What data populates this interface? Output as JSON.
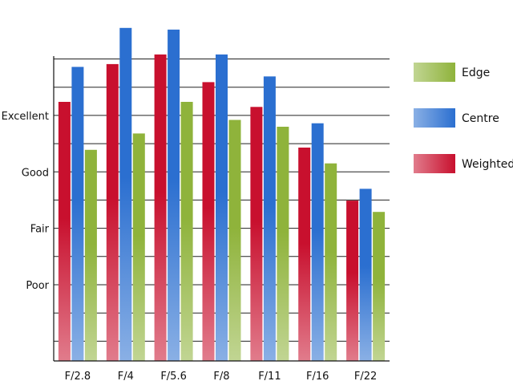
{
  "chart_data": {
    "type": "bar",
    "title": "",
    "xlabel": "",
    "ylabel": "",
    "categories": [
      "F/2.8",
      "F/4",
      "F/5.6",
      "F/8",
      "F/11",
      "F/16",
      "F/22"
    ],
    "y_tick_labels": [
      {
        "label": "Poor",
        "value": 1
      },
      {
        "label": "Fair",
        "value": 2
      },
      {
        "label": "Good",
        "value": 3
      },
      {
        "label": "Excellent",
        "value": 4
      }
    ],
    "ylim": [
      -0.35,
      5.05
    ],
    "grid": true,
    "legend_position": "right",
    "series": [
      {
        "name": "Weighted",
        "color": "#c8102e",
        "values": [
          4.24,
          4.91,
          5.08,
          4.59,
          4.15,
          3.43,
          2.49
        ]
      },
      {
        "name": "Centre",
        "color": "#2b6fd0",
        "values": [
          4.86,
          5.55,
          5.52,
          5.08,
          4.69,
          3.86,
          2.7
        ]
      },
      {
        "name": "Edge",
        "color": "#8fb33b",
        "values": [
          3.39,
          3.68,
          4.24,
          3.92,
          3.8,
          3.15,
          2.29
        ]
      }
    ],
    "legend_order": [
      "Edge",
      "Centre",
      "Weighted"
    ]
  }
}
